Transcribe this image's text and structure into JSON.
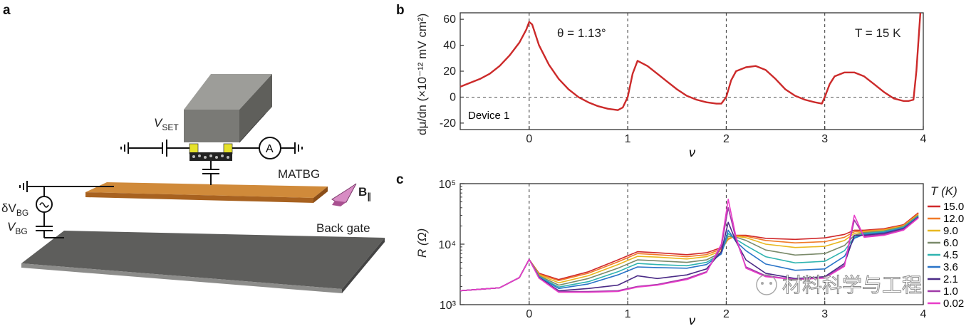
{
  "panel_a": {
    "letter": "a",
    "vset": "V",
    "vset_sub": "SET",
    "ammeter": "A",
    "sample": "MATBG",
    "field": "B",
    "field_sub": "∥",
    "dvbg": "δV",
    "dvbg_sub": "BG",
    "vbg": "V",
    "vbg_sub": "BG",
    "backgate": "Back gate",
    "colors": {
      "set_block": "#8a8a86",
      "sample": "#c47a2a",
      "gate": "#555555",
      "contact": "#e6e22a",
      "field_arrow": "#c86fb0"
    }
  },
  "panel_b": {
    "letter": "b",
    "annotation_theta": "θ = 1.13°",
    "annotation_T": "T = 15 K",
    "annotation_device": "Device 1",
    "ylabel": "dμ/dn (×10⁻¹² mV cm²)",
    "xlabel": "ν",
    "line_color": "#cc2a2a"
  },
  "panel_c": {
    "letter": "c",
    "ylabel": "R (Ω)",
    "xlabel": "ν",
    "legend_title": "T (K)",
    "watermark": "材料科学与工程"
  },
  "chart_data": [
    {
      "id": "b",
      "type": "line",
      "xlabel": "ν",
      "ylabel": "dμ/dn (×10⁻¹² mV cm²)",
      "xlim": [
        -0.7,
        4.0
      ],
      "ylim": [
        -25,
        65
      ],
      "xticks": [
        0,
        1,
        2,
        3,
        4
      ],
      "yticks": [
        -20,
        0,
        20,
        40,
        60
      ],
      "vlines": [
        0,
        1,
        2,
        3
      ],
      "hline": 0,
      "series": [
        {
          "color": "#cc2a2a",
          "x": [
            -0.7,
            -0.6,
            -0.5,
            -0.4,
            -0.3,
            -0.2,
            -0.1,
            -0.03,
            0.0,
            0.03,
            0.1,
            0.2,
            0.3,
            0.4,
            0.5,
            0.6,
            0.7,
            0.8,
            0.9,
            0.95,
            1.0,
            1.05,
            1.1,
            1.2,
            1.3,
            1.4,
            1.5,
            1.6,
            1.7,
            1.8,
            1.9,
            1.95,
            2.0,
            2.05,
            2.1,
            2.2,
            2.3,
            2.4,
            2.5,
            2.6,
            2.7,
            2.8,
            2.9,
            2.97,
            3.0,
            3.05,
            3.1,
            3.2,
            3.3,
            3.4,
            3.5,
            3.6,
            3.7,
            3.8,
            3.85,
            3.9,
            3.93,
            3.97
          ],
          "y": [
            8,
            11,
            14,
            18,
            24,
            32,
            42,
            52,
            58,
            56,
            40,
            25,
            14,
            6,
            0,
            -4,
            -7,
            -9,
            -10,
            -8,
            0,
            18,
            28,
            24,
            18,
            12,
            6,
            1,
            -2,
            -4,
            -5,
            -5,
            0,
            13,
            20,
            23,
            24,
            21,
            14,
            6,
            1,
            -2,
            -4,
            -5,
            0,
            10,
            16,
            19,
            19,
            16,
            10,
            4,
            -1,
            -3,
            -3,
            -2,
            20,
            65
          ]
        }
      ]
    },
    {
      "id": "c",
      "type": "line",
      "xlabel": "ν",
      "ylabel": "R (Ω)",
      "yscale": "log",
      "xlim": [
        -0.7,
        4.0
      ],
      "ylim": [
        1000,
        100000
      ],
      "xticks": [
        0,
        1,
        2,
        3,
        4
      ],
      "yticks": [
        "10³",
        "10⁴",
        "10⁵"
      ],
      "vlines": [
        0,
        1,
        2,
        3
      ],
      "legend_title": "T (K)",
      "legend_position": "right",
      "x": [
        -0.7,
        -0.3,
        -0.1,
        0.0,
        0.1,
        0.3,
        0.6,
        0.9,
        1.1,
        1.3,
        1.6,
        1.8,
        1.95,
        2.02,
        2.1,
        2.2,
        2.4,
        2.7,
        3.0,
        3.2,
        3.3,
        3.4,
        3.6,
        3.8,
        3.95
      ],
      "series": [
        {
          "name": "15.0",
          "color": "#d0292b",
          "values": [
            1700,
            1900,
            2800,
            5600,
            3300,
            2600,
            3500,
            5500,
            7500,
            7200,
            6700,
            7200,
            8800,
            12000,
            14000,
            14000,
            12500,
            12000,
            12700,
            14500,
            17000,
            17000,
            18000,
            21000,
            33000
          ]
        },
        {
          "name": "12.0",
          "color": "#f07a28",
          "values": [
            1700,
            1900,
            2800,
            5600,
            3200,
            2500,
            3300,
            5100,
            7000,
            6700,
            6200,
            6700,
            8300,
            12000,
            13800,
            13500,
            11500,
            10500,
            11000,
            13000,
            16000,
            16500,
            17500,
            20500,
            32000
          ]
        },
        {
          "name": "9.0",
          "color": "#e8b820",
          "values": [
            1700,
            1900,
            2800,
            5600,
            3100,
            2300,
            3000,
            4600,
            6300,
            6100,
            5700,
            6200,
            7800,
            12500,
            13500,
            12800,
            10000,
            8800,
            9200,
            11500,
            15000,
            16000,
            17000,
            20000,
            31000
          ]
        },
        {
          "name": "6.0",
          "color": "#7a8a6a",
          "values": [
            1700,
            1900,
            2800,
            5600,
            3000,
            2100,
            2700,
            4000,
            5500,
            5300,
            5000,
            5500,
            7300,
            13500,
            13000,
            11500,
            8000,
            6600,
            7000,
            9500,
            14000,
            15500,
            16500,
            19500,
            30000
          ]
        },
        {
          "name": "4.5",
          "color": "#2fb4b0",
          "values": [
            1700,
            1900,
            2800,
            5600,
            2900,
            1950,
            2400,
            3500,
            4800,
            4600,
            4400,
            5000,
            7000,
            15000,
            12000,
            9500,
            6200,
            4900,
            5200,
            7800,
            13000,
            15000,
            16000,
            19000,
            29000
          ]
        },
        {
          "name": "3.6",
          "color": "#2a74c8",
          "values": [
            1700,
            1900,
            2800,
            5600,
            2850,
            1850,
            2200,
            3100,
            4200,
            4100,
            4000,
            4600,
            6900,
            17000,
            11000,
            7800,
            4700,
            3700,
            3900,
            6300,
            12500,
            14500,
            15500,
            18500,
            28500
          ]
        },
        {
          "name": "2.1",
          "color": "#4a2a86",
          "values": [
            1700,
            1900,
            2800,
            5600,
            2800,
            1700,
            1850,
            2100,
            3000,
            2700,
            3100,
            3900,
            7500,
            23000,
            11000,
            5500,
            3300,
            2700,
            2900,
            4800,
            14000,
            14000,
            15000,
            18000,
            28000
          ]
        },
        {
          "name": "1.0",
          "color": "#a03aa8",
          "values": [
            1700,
            1900,
            2800,
            5600,
            2750,
            1650,
            1650,
            1700,
            2000,
            2150,
            2700,
            3500,
            9000,
            40000,
            12000,
            4200,
            3000,
            2600,
            2800,
            4500,
            25000,
            13500,
            14500,
            17500,
            27500
          ]
        },
        {
          "name": "0.02",
          "color": "#e83cc8",
          "values": [
            1700,
            1900,
            2800,
            5600,
            2750,
            1600,
            1600,
            1650,
            1950,
            2100,
            2600,
            3400,
            10000,
            55000,
            13000,
            4000,
            2900,
            2600,
            2750,
            4300,
            30000,
            13000,
            14000,
            17000,
            27000
          ]
        }
      ]
    }
  ]
}
